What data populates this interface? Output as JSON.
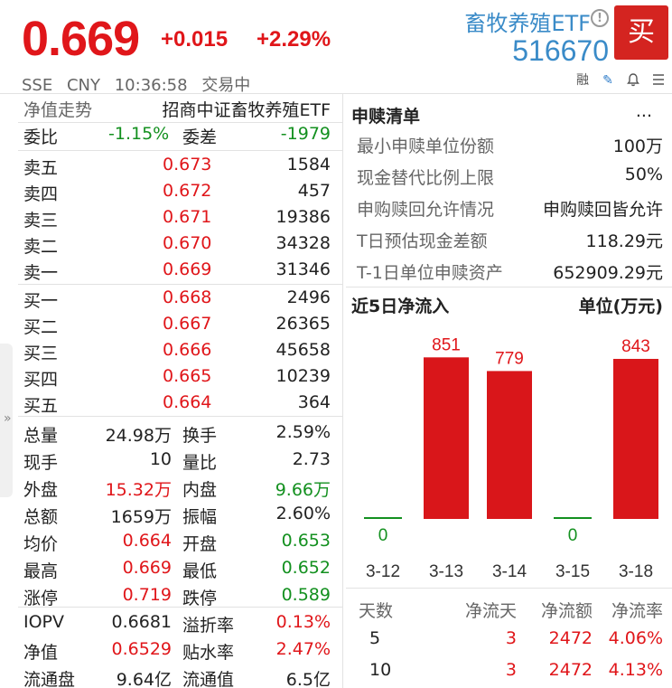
{
  "header": {
    "price": "0.669",
    "change": "+0.015",
    "change_pct": "+2.29%",
    "fund_name": "畜牧养殖ETF",
    "fund_code": "516670",
    "buy_label": "买",
    "exchange": "SSE",
    "currency": "CNY",
    "time": "10:36:58",
    "status": "交易中",
    "margin_label": "融"
  },
  "left": {
    "nav_label": "净值走势",
    "index_name": "招商中证畜牧养殖ETF",
    "weibi_label": "委比",
    "weibi_value": "-1.15%",
    "weicha_label": "委差",
    "weicha_value": "-1979",
    "asks": [
      {
        "label": "卖五",
        "price": "0.673",
        "volume": "1584"
      },
      {
        "label": "卖四",
        "price": "0.672",
        "volume": "457"
      },
      {
        "label": "卖三",
        "price": "0.671",
        "volume": "19386"
      },
      {
        "label": "卖二",
        "price": "0.670",
        "volume": "34328"
      },
      {
        "label": "卖一",
        "price": "0.669",
        "volume": "31346"
      }
    ],
    "bids": [
      {
        "label": "买一",
        "price": "0.668",
        "volume": "2496"
      },
      {
        "label": "买二",
        "price": "0.667",
        "volume": "26365"
      },
      {
        "label": "买三",
        "price": "0.666",
        "volume": "45658"
      },
      {
        "label": "买四",
        "price": "0.665",
        "volume": "10239"
      },
      {
        "label": "买五",
        "price": "0.664",
        "volume": "364"
      }
    ],
    "stats": [
      {
        "l1": "总量",
        "v1": "24.98万",
        "c1": "#222",
        "l2": "换手",
        "v2": "2.59%",
        "c2": "#222"
      },
      {
        "l1": "现手",
        "v1": "10",
        "c1": "#222",
        "l2": "量比",
        "v2": "2.73",
        "c2": "#222"
      },
      {
        "l1": "外盘",
        "v1": "15.32万",
        "c1": "#e0161a",
        "l2": "内盘",
        "v2": "9.66万",
        "c2": "#13901f"
      },
      {
        "l1": "总额",
        "v1": "1659万",
        "c1": "#222",
        "l2": "振幅",
        "v2": "2.60%",
        "c2": "#222"
      },
      {
        "l1": "均价",
        "v1": "0.664",
        "c1": "#e0161a",
        "l2": "开盘",
        "v2": "0.653",
        "c2": "#13901f"
      },
      {
        "l1": "最高",
        "v1": "0.669",
        "c1": "#e0161a",
        "l2": "最低",
        "v2": "0.652",
        "c2": "#13901f"
      },
      {
        "l1": "涨停",
        "v1": "0.719",
        "c1": "#e0161a",
        "l2": "跌停",
        "v2": "0.589",
        "c2": "#13901f"
      }
    ],
    "extra": [
      {
        "l1": "IOPV",
        "v1": "0.6681",
        "c1": "#222",
        "l2": "溢折率",
        "v2": "0.13%",
        "c2": "#e0161a"
      },
      {
        "l1": "净值",
        "v1": "0.6529",
        "c1": "#e0161a",
        "l2": "贴水率",
        "v2": "2.47%",
        "c2": "#e0161a"
      },
      {
        "l1": "流通盘",
        "v1": "9.64亿",
        "c1": "#222",
        "l2": "流通值",
        "v2": "6.5亿",
        "c2": "#222"
      }
    ]
  },
  "right": {
    "redemption_title": "申赎清单",
    "more_label": "...",
    "redemption_items": [
      {
        "label": "最小申赎单位份额",
        "value": "100万"
      },
      {
        "label": "现金替代比例上限",
        "value": "50%"
      },
      {
        "label": "申购赎回允许情况",
        "value": "申购赎回皆允许"
      },
      {
        "label": "T日预估现金差额",
        "value": "118.29元"
      },
      {
        "label": "T-1日单位申赎资产",
        "value": "652909.29元"
      }
    ],
    "flow_title": "近5日净流入",
    "flow_unit": "单位(万元)",
    "flow_table": {
      "headers": [
        "天数",
        "净流天",
        "净流额",
        "净流率"
      ],
      "rows": [
        [
          "5",
          "3",
          "2472",
          "4.06%"
        ],
        [
          "10",
          "3",
          "2472",
          "4.13%"
        ]
      ]
    }
  },
  "chart_data": {
    "type": "bar",
    "title": "近5日净流入",
    "ylabel": "单位(万元)",
    "categories": [
      "3-12",
      "3-13",
      "3-14",
      "3-15",
      "3-18"
    ],
    "values": [
      0,
      851,
      779,
      0,
      843
    ],
    "data_labels": [
      "0",
      "851",
      "779",
      "0",
      "843"
    ],
    "ylim": [
      0,
      1000
    ],
    "bar_color": "#d9161a",
    "zero_color": "#13901f"
  }
}
